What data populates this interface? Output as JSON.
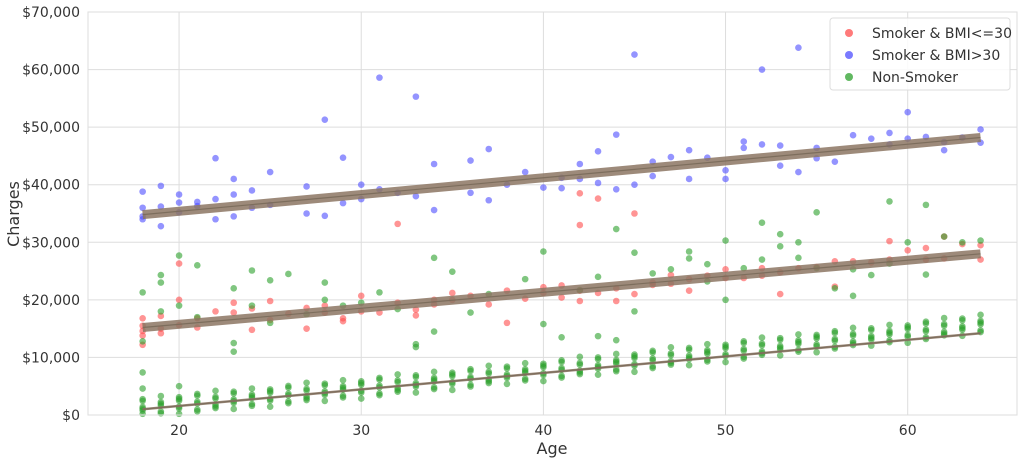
{
  "chart_data": {
    "type": "scatter",
    "title": "",
    "xlabel": "Age",
    "ylabel": "Charges",
    "xlim": [
      15,
      66
    ],
    "ylim": [
      0,
      70000
    ],
    "x_ticks": [
      20,
      30,
      40,
      50,
      60
    ],
    "y_ticks": [
      0,
      10000,
      20000,
      30000,
      40000,
      50000,
      60000,
      70000
    ],
    "y_tick_labels": [
      "$0",
      "$10,000",
      "$20,000",
      "$30,000",
      "$40,000",
      "$50,000",
      "$60,000",
      "$70,000"
    ],
    "grid": true,
    "legend_position": "top-right",
    "series": [
      {
        "name": "Smoker & BMI<=30",
        "color": "#ff4d4d",
        "points": [
          [
            18,
            15500
          ],
          [
            18,
            13800
          ],
          [
            18,
            14600
          ],
          [
            18,
            16800
          ],
          [
            18,
            12200
          ],
          [
            19,
            15000
          ],
          [
            19,
            14200
          ],
          [
            19,
            17200
          ],
          [
            20,
            26300
          ],
          [
            20,
            20000
          ],
          [
            20,
            15600
          ],
          [
            21,
            16800
          ],
          [
            21,
            15200
          ],
          [
            22,
            18000
          ],
          [
            23,
            17800
          ],
          [
            23,
            19500
          ],
          [
            24,
            18500
          ],
          [
            24,
            14800
          ],
          [
            25,
            19800
          ],
          [
            25,
            16500
          ],
          [
            26,
            17600
          ],
          [
            27,
            15000
          ],
          [
            27,
            18600
          ],
          [
            28,
            19000
          ],
          [
            28,
            17800
          ],
          [
            29,
            16800
          ],
          [
            29,
            16300
          ],
          [
            30,
            20700
          ],
          [
            30,
            18000
          ],
          [
            31,
            17800
          ],
          [
            32,
            33200
          ],
          [
            32,
            19500
          ],
          [
            33,
            18300
          ],
          [
            33,
            17300
          ],
          [
            34,
            20000
          ],
          [
            34,
            19200
          ],
          [
            35,
            21200
          ],
          [
            35,
            20000
          ],
          [
            36,
            20700
          ],
          [
            37,
            19200
          ],
          [
            38,
            16000
          ],
          [
            38,
            21600
          ],
          [
            39,
            20200
          ],
          [
            40,
            22200
          ],
          [
            40,
            21200
          ],
          [
            41,
            22500
          ],
          [
            41,
            20400
          ],
          [
            42,
            38500
          ],
          [
            42,
            33000
          ],
          [
            42,
            19800
          ],
          [
            42,
            21600
          ],
          [
            43,
            37600
          ],
          [
            43,
            21200
          ],
          [
            44,
            19800
          ],
          [
            44,
            22000
          ],
          [
            45,
            35000
          ],
          [
            45,
            21000
          ],
          [
            46,
            22600
          ],
          [
            46,
            23000
          ],
          [
            47,
            22800
          ],
          [
            47,
            24300
          ],
          [
            48,
            23600
          ],
          [
            48,
            21600
          ],
          [
            49,
            24200
          ],
          [
            50,
            25300
          ],
          [
            50,
            23800
          ],
          [
            51,
            23800
          ],
          [
            52,
            25500
          ],
          [
            52,
            24200
          ],
          [
            53,
            21000
          ],
          [
            53,
            24800
          ],
          [
            54,
            25500
          ],
          [
            55,
            25700
          ],
          [
            56,
            22300
          ],
          [
            56,
            26700
          ],
          [
            57,
            26700
          ],
          [
            58,
            26500
          ],
          [
            59,
            30200
          ],
          [
            59,
            27000
          ],
          [
            60,
            28600
          ],
          [
            61,
            27000
          ],
          [
            61,
            29000
          ],
          [
            62,
            27200
          ],
          [
            62,
            31000
          ],
          [
            63,
            29700
          ],
          [
            64,
            27000
          ],
          [
            64,
            29500
          ]
        ]
      },
      {
        "name": "Smoker & BMI>30",
        "color": "#4d4dff",
        "points": [
          [
            18,
            38800
          ],
          [
            18,
            36000
          ],
          [
            18,
            34500
          ],
          [
            18,
            34000
          ],
          [
            19,
            39800
          ],
          [
            19,
            32800
          ],
          [
            19,
            36200
          ],
          [
            20,
            38300
          ],
          [
            20,
            36900
          ],
          [
            20,
            35200
          ],
          [
            21,
            36300
          ],
          [
            21,
            37000
          ],
          [
            22,
            44600
          ],
          [
            22,
            34000
          ],
          [
            22,
            37500
          ],
          [
            23,
            38300
          ],
          [
            23,
            41000
          ],
          [
            23,
            34500
          ],
          [
            24,
            39000
          ],
          [
            24,
            36000
          ],
          [
            25,
            42200
          ],
          [
            25,
            36500
          ],
          [
            27,
            39700
          ],
          [
            27,
            35000
          ],
          [
            28,
            51300
          ],
          [
            28,
            34600
          ],
          [
            29,
            44700
          ],
          [
            29,
            36800
          ],
          [
            30,
            40000
          ],
          [
            30,
            37500
          ],
          [
            31,
            58600
          ],
          [
            31,
            39200
          ],
          [
            32,
            38600
          ],
          [
            33,
            55300
          ],
          [
            33,
            38000
          ],
          [
            34,
            43600
          ],
          [
            34,
            35600
          ],
          [
            36,
            44200
          ],
          [
            36,
            38600
          ],
          [
            37,
            46200
          ],
          [
            37,
            37300
          ],
          [
            38,
            40000
          ],
          [
            39,
            42200
          ],
          [
            40,
            39500
          ],
          [
            41,
            39400
          ],
          [
            41,
            41200
          ],
          [
            42,
            43600
          ],
          [
            42,
            41000
          ],
          [
            43,
            45800
          ],
          [
            43,
            40300
          ],
          [
            44,
            48700
          ],
          [
            44,
            39200
          ],
          [
            45,
            62600
          ],
          [
            45,
            40000
          ],
          [
            46,
            44000
          ],
          [
            46,
            41500
          ],
          [
            47,
            44800
          ],
          [
            48,
            46000
          ],
          [
            48,
            41000
          ],
          [
            49,
            44700
          ],
          [
            50,
            41000
          ],
          [
            50,
            42500
          ],
          [
            51,
            47500
          ],
          [
            51,
            46400
          ],
          [
            52,
            60000
          ],
          [
            52,
            47000
          ],
          [
            53,
            46800
          ],
          [
            53,
            43300
          ],
          [
            54,
            63800
          ],
          [
            54,
            42200
          ],
          [
            55,
            44600
          ],
          [
            55,
            46400
          ],
          [
            56,
            44000
          ],
          [
            57,
            48600
          ],
          [
            58,
            48000
          ],
          [
            59,
            49000
          ],
          [
            59,
            47000
          ],
          [
            60,
            52600
          ],
          [
            60,
            48000
          ],
          [
            61,
            48300
          ],
          [
            62,
            46000
          ],
          [
            62,
            47400
          ],
          [
            63,
            48200
          ],
          [
            64,
            49600
          ],
          [
            64,
            47300
          ]
        ]
      },
      {
        "name": "Non-Smoker",
        "color": "#2ca02c",
        "trend": [
          [
            18,
            1400
          ],
          [
            19,
            1650
          ],
          [
            20,
            1900
          ],
          [
            21,
            2150
          ],
          [
            22,
            2400
          ],
          [
            23,
            2700
          ],
          [
            24,
            2950
          ],
          [
            25,
            3250
          ],
          [
            26,
            3550
          ],
          [
            27,
            3800
          ],
          [
            28,
            4100
          ],
          [
            29,
            4400
          ],
          [
            30,
            4650
          ],
          [
            31,
            4950
          ],
          [
            32,
            5250
          ],
          [
            33,
            5550
          ],
          [
            34,
            5850
          ],
          [
            35,
            6150
          ],
          [
            36,
            6450
          ],
          [
            37,
            6750
          ],
          [
            38,
            7050
          ],
          [
            39,
            7350
          ],
          [
            40,
            7700
          ],
          [
            41,
            8000
          ],
          [
            42,
            8300
          ],
          [
            43,
            8650
          ],
          [
            44,
            8950
          ],
          [
            45,
            9300
          ],
          [
            46,
            9650
          ],
          [
            47,
            9950
          ],
          [
            48,
            10300
          ],
          [
            49,
            10650
          ],
          [
            50,
            11000
          ],
          [
            51,
            11300
          ],
          [
            52,
            11650
          ],
          [
            53,
            12000
          ],
          [
            54,
            12350
          ],
          [
            55,
            12700
          ],
          [
            56,
            13050
          ],
          [
            57,
            13350
          ],
          [
            58,
            13700
          ],
          [
            59,
            14000
          ],
          [
            60,
            14350
          ],
          [
            61,
            14700
          ],
          [
            62,
            15050
          ],
          [
            63,
            15400
          ],
          [
            64,
            15750
          ]
        ],
        "outliers": [
          [
            18,
            21300
          ],
          [
            18,
            12800
          ],
          [
            18,
            7400
          ],
          [
            18,
            4600
          ],
          [
            19,
            23000
          ],
          [
            19,
            18000
          ],
          [
            19,
            24300
          ],
          [
            20,
            27700
          ],
          [
            20,
            19000
          ],
          [
            20,
            5000
          ],
          [
            21,
            26000
          ],
          [
            21,
            17000
          ],
          [
            23,
            22000
          ],
          [
            23,
            12500
          ],
          [
            23,
            11000
          ],
          [
            24,
            25100
          ],
          [
            24,
            19000
          ],
          [
            25,
            23400
          ],
          [
            25,
            16000
          ],
          [
            26,
            24500
          ],
          [
            27,
            17500
          ],
          [
            28,
            23000
          ],
          [
            28,
            20000
          ],
          [
            29,
            19000
          ],
          [
            30,
            19500
          ],
          [
            31,
            21300
          ],
          [
            32,
            18400
          ],
          [
            33,
            12300
          ],
          [
            33,
            11800
          ],
          [
            34,
            27300
          ],
          [
            34,
            14500
          ],
          [
            35,
            24900
          ],
          [
            36,
            17800
          ],
          [
            37,
            21000
          ],
          [
            39,
            23600
          ],
          [
            40,
            28400
          ],
          [
            40,
            15800
          ],
          [
            41,
            13500
          ],
          [
            42,
            21700
          ],
          [
            43,
            13700
          ],
          [
            43,
            24000
          ],
          [
            44,
            32300
          ],
          [
            44,
            13000
          ],
          [
            45,
            28200
          ],
          [
            45,
            18000
          ],
          [
            46,
            24600
          ],
          [
            47,
            25300
          ],
          [
            48,
            28400
          ],
          [
            48,
            27200
          ],
          [
            49,
            23200
          ],
          [
            49,
            26200
          ],
          [
            50,
            30300
          ],
          [
            50,
            20000
          ],
          [
            51,
            25500
          ],
          [
            52,
            33400
          ],
          [
            52,
            27000
          ],
          [
            53,
            29300
          ],
          [
            53,
            31400
          ],
          [
            54,
            30000
          ],
          [
            54,
            27300
          ],
          [
            55,
            35200
          ],
          [
            55,
            25500
          ],
          [
            56,
            22000
          ],
          [
            57,
            25300
          ],
          [
            57,
            20700
          ],
          [
            58,
            24300
          ],
          [
            59,
            37100
          ],
          [
            59,
            26300
          ],
          [
            60,
            30000
          ],
          [
            61,
            36500
          ],
          [
            61,
            24400
          ],
          [
            62,
            31000
          ],
          [
            63,
            30000
          ],
          [
            64,
            30300
          ]
        ]
      }
    ],
    "fit_lines": [
      {
        "series": "Smoker & BMI<=30",
        "color": "#8c7563",
        "from": [
          18,
          15200
        ],
        "to": [
          64,
          28000
        ]
      },
      {
        "series": "Smoker & BMI>30",
        "color": "#8c7563",
        "from": [
          18,
          34800
        ],
        "to": [
          64,
          48200
        ]
      },
      {
        "series": "Non-Smoker",
        "color": "#8c7563",
        "from": [
          18,
          1000
        ],
        "to": [
          64,
          14200
        ]
      }
    ]
  }
}
